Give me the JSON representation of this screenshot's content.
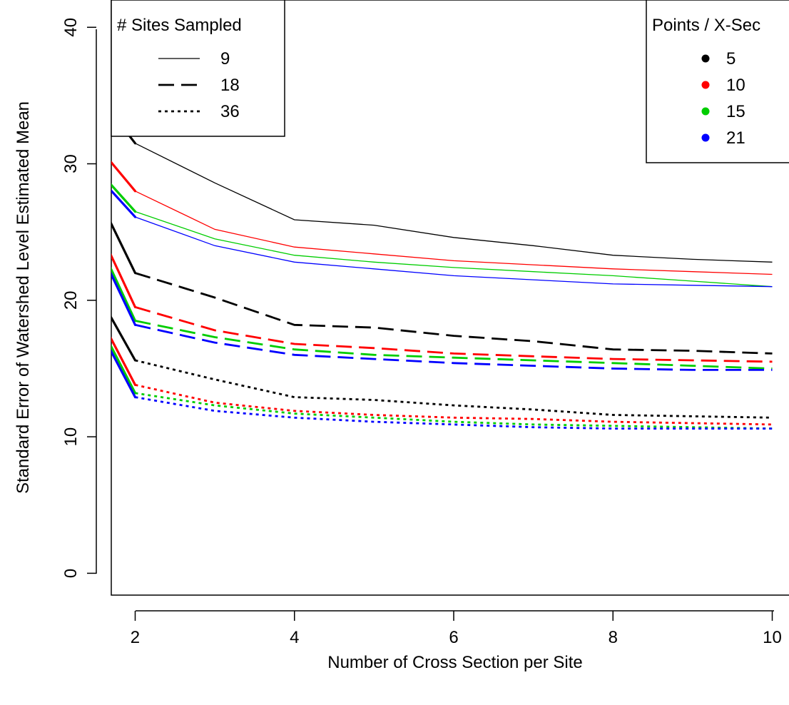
{
  "chart_data": {
    "type": "line",
    "xlabel": "Number of Cross Section per Site",
    "ylabel": "Standard Error of Watershed Level Estimated Mean",
    "xlim": [
      1.7,
      10.3
    ],
    "ylim": [
      -1.6,
      42
    ],
    "xticks": [
      "2",
      "4",
      "6",
      "8",
      "10"
    ],
    "yticks": [
      "0",
      "10",
      "20",
      "30",
      "40"
    ],
    "grid": false,
    "series": [
      {
        "sites": "9",
        "points": "5",
        "color": "#000000",
        "style": "solid",
        "x": [
          1,
          2,
          3,
          4,
          5,
          6,
          7,
          8,
          9,
          10
        ],
        "y": [
          39.0,
          31.5,
          28.6,
          25.9,
          25.5,
          24.6,
          24.0,
          23.3,
          23.0,
          22.8
        ]
      },
      {
        "sites": "9",
        "points": "10",
        "color": "#ff0000",
        "style": "solid",
        "x": [
          1,
          2,
          3,
          4,
          5,
          6,
          7,
          8,
          9,
          10
        ],
        "y": [
          35.0,
          28.0,
          25.2,
          23.9,
          23.4,
          22.9,
          22.6,
          22.3,
          22.1,
          21.9
        ]
      },
      {
        "sites": "9",
        "points": "15",
        "color": "#00cd00",
        "style": "solid",
        "x": [
          1,
          2,
          3,
          4,
          5,
          6,
          7,
          8,
          9,
          10
        ],
        "y": [
          33.0,
          26.5,
          24.5,
          23.3,
          22.8,
          22.4,
          22.1,
          21.8,
          21.4,
          21.0
        ]
      },
      {
        "sites": "9",
        "points": "21",
        "color": "#0000ff",
        "style": "solid",
        "x": [
          1,
          2,
          3,
          4,
          5,
          6,
          7,
          8,
          9,
          10
        ],
        "y": [
          32.5,
          26.1,
          24.0,
          22.8,
          22.3,
          21.8,
          21.5,
          21.2,
          21.1,
          21.0
        ]
      },
      {
        "sites": "18",
        "points": "5",
        "color": "#000000",
        "style": "dashed",
        "x": [
          1,
          2,
          3,
          4,
          5,
          6,
          7,
          8,
          9,
          10
        ],
        "y": [
          34.0,
          22.0,
          20.2,
          18.2,
          18.0,
          17.4,
          17.0,
          16.4,
          16.3,
          16.1
        ]
      },
      {
        "sites": "18",
        "points": "10",
        "color": "#ff0000",
        "style": "dashed",
        "x": [
          1,
          2,
          3,
          4,
          5,
          6,
          7,
          8,
          9,
          10
        ],
        "y": [
          32.0,
          19.5,
          17.8,
          16.8,
          16.5,
          16.1,
          15.9,
          15.7,
          15.6,
          15.5
        ]
      },
      {
        "sites": "18",
        "points": "15",
        "color": "#00cd00",
        "style": "dashed",
        "x": [
          1,
          2,
          3,
          4,
          5,
          6,
          7,
          8,
          9,
          10
        ],
        "y": [
          31.0,
          18.5,
          17.3,
          16.4,
          16.0,
          15.8,
          15.6,
          15.4,
          15.2,
          15.0
        ]
      },
      {
        "sites": "18",
        "points": "21",
        "color": "#0000ff",
        "style": "dashed",
        "x": [
          1,
          2,
          3,
          4,
          5,
          6,
          7,
          8,
          9,
          10
        ],
        "y": [
          30.5,
          18.2,
          16.9,
          16.0,
          15.7,
          15.4,
          15.2,
          15.0,
          14.9,
          14.9
        ]
      },
      {
        "sites": "36",
        "points": "5",
        "color": "#000000",
        "style": "dotted",
        "x": [
          1,
          2,
          3,
          4,
          5,
          6,
          7,
          8,
          9,
          10
        ],
        "y": [
          26.0,
          15.6,
          14.2,
          12.9,
          12.7,
          12.3,
          12.0,
          11.6,
          11.5,
          11.4
        ]
      },
      {
        "sites": "36",
        "points": "10",
        "color": "#ff0000",
        "style": "dotted",
        "x": [
          1,
          2,
          3,
          4,
          5,
          6,
          7,
          8,
          9,
          10
        ],
        "y": [
          25.0,
          13.8,
          12.5,
          11.9,
          11.6,
          11.4,
          11.3,
          11.1,
          11.0,
          10.9
        ]
      },
      {
        "sites": "36",
        "points": "15",
        "color": "#00cd00",
        "style": "dotted",
        "x": [
          1,
          2,
          3,
          4,
          5,
          6,
          7,
          8,
          9,
          10
        ],
        "y": [
          24.5,
          13.2,
          12.3,
          11.7,
          11.4,
          11.1,
          10.9,
          10.8,
          10.7,
          10.6
        ]
      },
      {
        "sites": "36",
        "points": "21",
        "color": "#0000ff",
        "style": "dotted",
        "x": [
          1,
          2,
          3,
          4,
          5,
          6,
          7,
          8,
          9,
          10
        ],
        "y": [
          24.0,
          12.9,
          11.9,
          11.4,
          11.1,
          10.9,
          10.7,
          10.6,
          10.6,
          10.6
        ]
      }
    ],
    "legends": [
      {
        "title": "# Sites Sampled",
        "placement": "top-left",
        "entries": [
          {
            "label": "9",
            "style": "solid"
          },
          {
            "label": "18",
            "style": "dashed"
          },
          {
            "label": "36",
            "style": "dotted"
          }
        ]
      },
      {
        "title": "Points / X-Sec",
        "placement": "top-right",
        "entries": [
          {
            "label": "5",
            "color": "#000000"
          },
          {
            "label": "10",
            "color": "#ff0000"
          },
          {
            "label": "15",
            "color": "#00cd00"
          },
          {
            "label": "21",
            "color": "#0000ff"
          }
        ]
      }
    ]
  }
}
